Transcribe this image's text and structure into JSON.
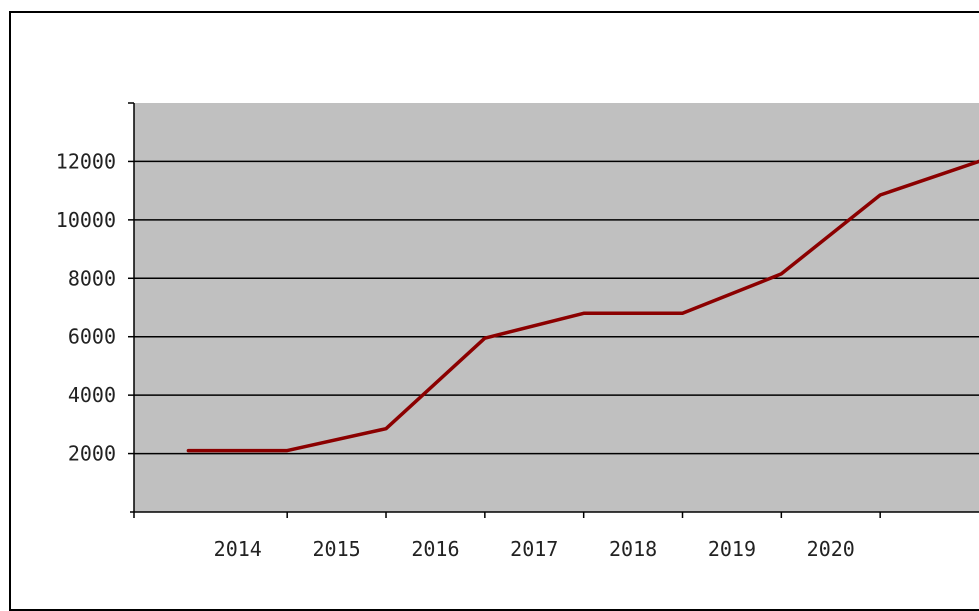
{
  "chart_data": {
    "type": "line",
    "x": [
      2013.5,
      2014.5,
      2015.5,
      2016.5,
      2017.5,
      2018.5,
      2019.5,
      2020.5,
      2021.5
    ],
    "series": [
      {
        "values": [
          2100,
          2100,
          2850,
          5950,
          6800,
          6800,
          8150,
          10850,
          12000
        ],
        "color": "#8b0000"
      }
    ],
    "xlim": [
      2012.95,
      2021.5
    ],
    "ylim": [
      0,
      14000
    ],
    "x_ticks": [
      2014,
      2015,
      2016,
      2017,
      2018,
      2019,
      2020
    ],
    "x_tick_labels": [
      "2014",
      "2015",
      "2016",
      "2017",
      "2018",
      "2019",
      "2020"
    ],
    "y_ticks": [
      2000,
      4000,
      6000,
      8000,
      10000,
      12000
    ],
    "y_tick_labels": [
      "2000",
      "4000",
      "6000",
      "8000",
      "10000",
      "12000"
    ],
    "grid": true,
    "plot_background": "#c0c0c0",
    "gridline_color": "#000000"
  }
}
